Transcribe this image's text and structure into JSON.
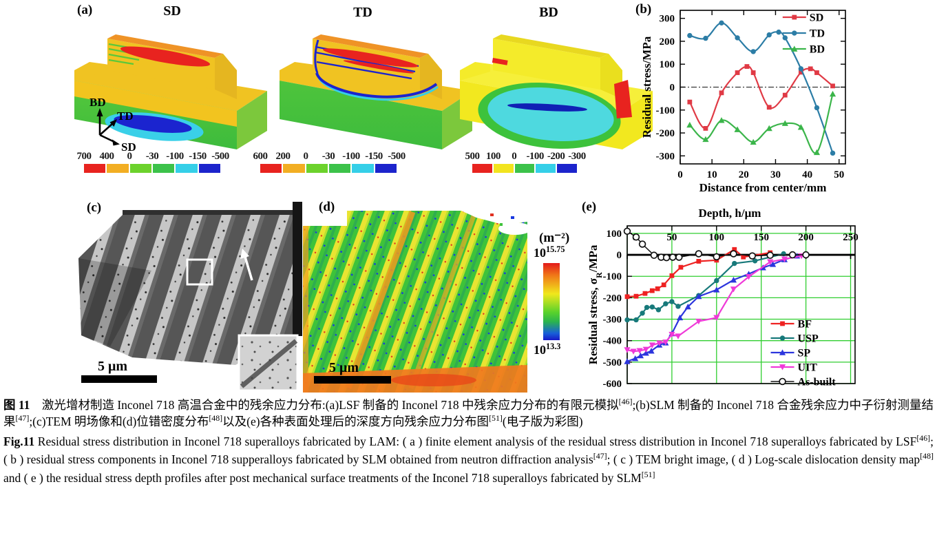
{
  "figure": {
    "panels": {
      "a": {
        "label": "(a)",
        "views": [
          "SD",
          "TD",
          "BD"
        ],
        "triad": {
          "up": "BD",
          "mid": "TD",
          "low": "SD"
        },
        "colorbars": [
          {
            "labels": [
              "700",
              "400",
              "0",
              "-30",
              "-100",
              "-150",
              "-500"
            ],
            "colors": [
              "#e8231f",
              "#f2ae23",
              "#6cd22c",
              "#3cc24a",
              "#35cfe8",
              "#1c24cc"
            ]
          },
          {
            "labels": [
              "600",
              "200",
              "0",
              "-30",
              "-100",
              "-150",
              "-500"
            ],
            "colors": [
              "#e8231f",
              "#f2ae23",
              "#6cd22c",
              "#3cc24a",
              "#35cfe8",
              "#1c24cc"
            ]
          },
          {
            "labels": [
              "500",
              "100",
              "0",
              "-100",
              "-200",
              "-300"
            ],
            "colors": [
              "#e8231f",
              "#f2e41f",
              "#3cc24a",
              "#35cfe8",
              "#1c24cc"
            ]
          }
        ]
      },
      "b": {
        "label": "(b)"
      },
      "c": {
        "label": "(c)",
        "scale_bar": "5 μm"
      },
      "d": {
        "label": "(d)",
        "scale_bar": "5 μm",
        "colorbar": {
          "unit": "(m⁻²)",
          "max": "10^{15.75}",
          "min": "10^{13.3}"
        }
      },
      "e": {
        "label": "(e)"
      }
    }
  },
  "chart_data": [
    {
      "id": "b",
      "el": "chart-b",
      "type": "line",
      "smooth": true,
      "xlabel": "Distance from center/mm",
      "ylabel": "Residual stress/MPa",
      "xlim": [
        0,
        52
      ],
      "ylim": [
        -335,
        335
      ],
      "xticks": [
        0,
        10,
        20,
        30,
        40,
        50
      ],
      "yticks": [
        -300,
        -200,
        -100,
        0,
        100,
        200,
        300
      ],
      "xlabel_pos": "bottom",
      "zero_line": "dashed",
      "legend": {
        "x": 0.62,
        "y": 0.045,
        "dy": 23
      },
      "legend_position": "top-right",
      "layout": {
        "ml": 58,
        "mr": 32,
        "mt": 15,
        "mb": 46
      },
      "series": [
        {
          "name": "SD",
          "color": "#e03a45",
          "marker": "square",
          "x": [
            3,
            8,
            13,
            18,
            21,
            23,
            28,
            33,
            38,
            41,
            43,
            48
          ],
          "y": [
            -65,
            -180,
            -25,
            63,
            90,
            63,
            -88,
            -35,
            65,
            80,
            63,
            5
          ]
        },
        {
          "name": "TD",
          "color": "#2c7da6",
          "marker": "circle",
          "x": [
            3,
            8,
            13,
            18,
            23,
            28,
            31,
            33,
            38,
            43,
            48
          ],
          "y": [
            225,
            213,
            280,
            215,
            155,
            228,
            240,
            215,
            80,
            -90,
            -288
          ]
        },
        {
          "name": "BD",
          "color": "#3bb54a",
          "marker": "triangle-up",
          "x": [
            3,
            8,
            13,
            18,
            23,
            28,
            33,
            38,
            43,
            48
          ],
          "y": [
            -165,
            -228,
            -145,
            -185,
            -240,
            -180,
            -158,
            -175,
            -285,
            -30
          ]
        }
      ]
    },
    {
      "id": "e",
      "el": "chart-e",
      "type": "line",
      "title": "Depth, h/μm",
      "ylabel": "Residual stress, σ_{R}/MPa",
      "xlim": [
        0,
        255
      ],
      "ylim": [
        -600,
        135
      ],
      "xticks": [
        0,
        50,
        100,
        150,
        200,
        250
      ],
      "yticks": [
        100,
        0,
        -100,
        -200,
        -300,
        -400,
        -500,
        -600
      ],
      "xlabel_pos": "insideTop",
      "zero_line": "thick",
      "grid": true,
      "grid_color": "#2fce2f",
      "legend": {
        "x": 0.63,
        "y": 0.62,
        "dy": 21
      },
      "legend_position": "bottom-right",
      "layout": {
        "ml": 59,
        "mr": 10,
        "mt": 35,
        "mb": 12
      },
      "series": [
        {
          "name": "BF",
          "color": "#ee2222",
          "marker": "square",
          "x": [
            0,
            10,
            20,
            28,
            34,
            41,
            50,
            60,
            80,
            100,
            120,
            130,
            160
          ],
          "y": [
            -195,
            -193,
            -180,
            -167,
            -158,
            -140,
            -97,
            -58,
            -30,
            -25,
            25,
            -10,
            10
          ]
        },
        {
          "name": "USP",
          "color": "#17797a",
          "marker": "circle",
          "x": [
            0,
            10,
            17,
            22,
            28,
            35,
            43,
            50,
            57,
            80,
            100,
            120,
            143,
            175
          ],
          "y": [
            -303,
            -303,
            -272,
            -245,
            -243,
            -256,
            -228,
            -218,
            -240,
            -190,
            -120,
            -40,
            -28,
            5
          ]
        },
        {
          "name": "SP",
          "color": "#2c35dd",
          "marker": "triangle-up",
          "x": [
            0,
            9,
            15,
            21,
            27,
            36,
            43,
            50,
            59,
            68,
            80,
            100,
            119,
            136,
            152,
            163,
            176,
            190
          ],
          "y": [
            -497,
            -483,
            -470,
            -458,
            -448,
            -420,
            -410,
            -367,
            -293,
            -242,
            -194,
            -163,
            -117,
            -89,
            -60,
            -44,
            -22,
            -5
          ]
        },
        {
          "name": "UIT",
          "color": "#ef3ad8",
          "marker": "triangle-down",
          "x": [
            0,
            7,
            14,
            21,
            28,
            36,
            43,
            50,
            57,
            80,
            100,
            119,
            136,
            160,
            176,
            195
          ],
          "y": [
            -443,
            -450,
            -447,
            -441,
            -421,
            -411,
            -407,
            -371,
            -379,
            -310,
            -293,
            -160,
            -102,
            -33,
            -20,
            -5
          ]
        },
        {
          "name": "As-built",
          "color": "#111111",
          "marker": "open-circle",
          "width": 1.5,
          "x": [
            0,
            10,
            17,
            30,
            38,
            44,
            51,
            58,
            80,
            100,
            119,
            140,
            160,
            185,
            200
          ],
          "y": [
            110,
            83,
            50,
            -2,
            -11,
            -13,
            -11,
            -11,
            5,
            -9,
            5,
            -5,
            -2,
            0,
            0
          ]
        }
      ]
    }
  ],
  "captions": {
    "zh": [
      {
        "t": "图 11",
        "b": true
      },
      {
        "t": "　激光增材制造 Inconel 718 高温合金中的残余应力分布:(a)LSF 制备的 Inconel 718 中残余应力分布的有限元模拟"
      },
      {
        "t": "[46]",
        "sup": true
      },
      {
        "t": ";(b)SLM 制备的 Inconel 718 合金残余应力中子衍射测量结果"
      },
      {
        "t": "[47]",
        "sup": true
      },
      {
        "t": ";(c)TEM 明场像和(d)位错密度分布"
      },
      {
        "t": "[48]",
        "sup": true
      },
      {
        "t": "以及(e)各种表面处理后的深度方向残余应力分布图"
      },
      {
        "t": "[51]",
        "sup": true
      },
      {
        "t": "(电子版为彩图)"
      }
    ],
    "en": [
      {
        "t": "Fig.11",
        "b": true
      },
      {
        "t": "  Residual stress distribution in Inconel 718 superalloys fabricated by LAM: ( a ) finite element analysis of the residual stress distribution in Inconel 718 superalloys fabricated by LSF"
      },
      {
        "t": "[46]",
        "sup": true
      },
      {
        "t": "; ( b ) residual stress components in Inconel 718 supperalloys fabricated by SLM obtained from neutron diffraction analysis"
      },
      {
        "t": "[47]",
        "sup": true
      },
      {
        "t": "; ( c ) TEM bright image, ( d ) Log-scale dislocation density map"
      },
      {
        "t": "[48]",
        "sup": true
      },
      {
        "t": " and ( e ) the residual stress depth profiles after post mechanical surface treatments of the Inconel 718 superalloys fabricated by SLM"
      },
      {
        "t": "[51]",
        "sup": true
      }
    ]
  }
}
